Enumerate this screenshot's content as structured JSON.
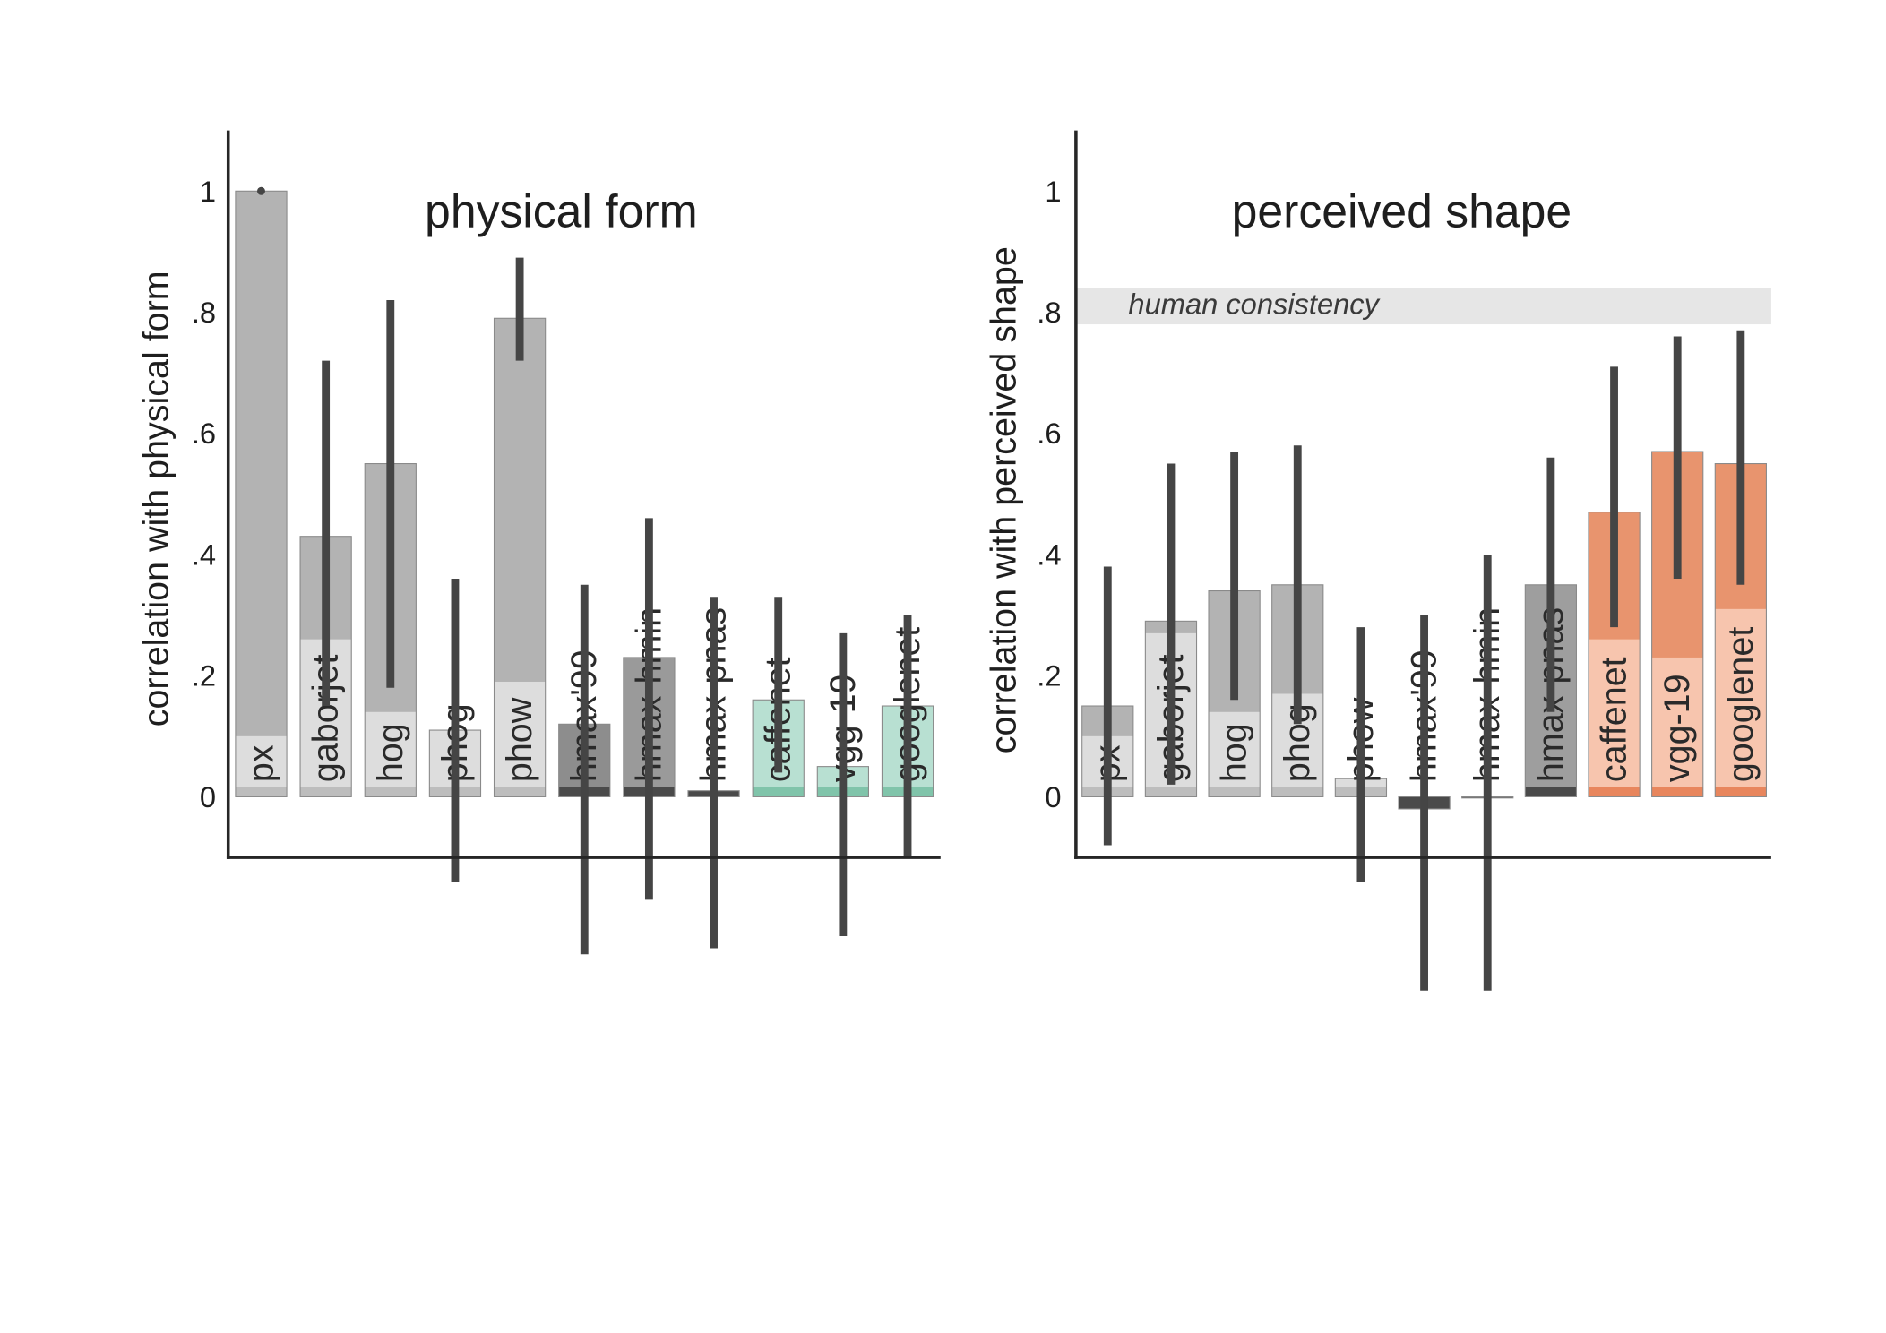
{
  "chart_data": [
    {
      "type": "bar",
      "title": "physical form",
      "ylabel": "correlation with physical form",
      "ylim": [
        -0.1,
        1.1
      ],
      "yticks": [
        0,
        0.2,
        0.4,
        0.6,
        0.8,
        1
      ],
      "ytick_labels": [
        "0",
        ".2",
        ".4",
        ".6",
        ".8",
        "1"
      ],
      "grid": false,
      "categories": [
        "px",
        "gaborjet",
        "hog",
        "phog",
        "phow",
        "hmax'99",
        "hmax-hmin",
        "hmax-pnas",
        "caffenet",
        "vgg-19",
        "googlenet"
      ],
      "values": [
        1.0,
        0.43,
        0.55,
        0.11,
        0.79,
        0.12,
        0.23,
        0.01,
        0.16,
        0.05,
        0.15
      ],
      "inner_values": [
        0.1,
        0.26,
        0.14,
        0.11,
        0.19,
        0,
        0,
        0,
        0.16,
        0.05,
        0.15
      ],
      "base_value": 0.016,
      "error_low": [
        1.0,
        0.15,
        0.18,
        -0.14,
        0.72,
        -0.26,
        -0.17,
        -0.25,
        0.04,
        -0.23,
        -0.1
      ],
      "error_high": [
        1.0,
        0.72,
        0.82,
        0.36,
        0.89,
        0.35,
        0.46,
        0.33,
        0.33,
        0.27,
        0.3
      ],
      "bar_colors": [
        "#b3b3b3",
        "#b3b3b3",
        "#b3b3b3",
        "#b3b3b3",
        "#b3b3b3",
        "#8d8d8d",
        "#9a9a9a",
        "#4a4a4a",
        "#b8e0d2",
        "#b8e0d2",
        "#b8e0d2"
      ],
      "inner_colors": [
        "#dddddd",
        "#dddddd",
        "#dddddd",
        "#dddddd",
        "#dddddd",
        "#8d8d8d",
        "#9a9a9a",
        "#4a4a4a",
        "#b8e0d2",
        "#b8e0d2",
        "#b8e0d2"
      ],
      "base_colors": [
        "#bdbdbd",
        "#bdbdbd",
        "#bdbdbd",
        "#bdbdbd",
        "#bdbdbd",
        "#4a4a4a",
        "#4a4a4a",
        "#4a4a4a",
        "#80c4aa",
        "#80c4aa",
        "#80c4aa"
      ],
      "error_color": "#454545"
    },
    {
      "type": "bar",
      "title": "perceived shape",
      "ylabel": "correlation with perceived shape",
      "ylim": [
        -0.1,
        1.1
      ],
      "yticks": [
        0,
        0.2,
        0.4,
        0.6,
        0.8,
        1
      ],
      "ytick_labels": [
        "0",
        ".2",
        ".4",
        ".6",
        ".8",
        "1"
      ],
      "grid": false,
      "categories": [
        "px",
        "gaborjet",
        "hog",
        "phog",
        "phow",
        "hmax'99",
        "hmax-hmin",
        "hmax-pnas",
        "caffenet",
        "vgg-19",
        "googlenet"
      ],
      "values": [
        0.15,
        0.29,
        0.34,
        0.35,
        0.03,
        -0.02,
        0.0,
        0.35,
        0.47,
        0.57,
        0.55
      ],
      "inner_values": [
        0.1,
        0.27,
        0.14,
        0.17,
        0.03,
        0,
        0,
        0,
        0.26,
        0.23,
        0.31
      ],
      "base_value": 0.016,
      "error_low": [
        -0.08,
        0.02,
        0.16,
        0.12,
        -0.14,
        -0.32,
        -0.32,
        0.14,
        0.28,
        0.36,
        0.35
      ],
      "error_high": [
        0.38,
        0.55,
        0.57,
        0.58,
        0.28,
        0.3,
        0.4,
        0.56,
        0.71,
        0.76,
        0.77
      ],
      "bar_colors": [
        "#b3b3b3",
        "#b3b3b3",
        "#b3b3b3",
        "#b3b3b3",
        "#b3b3b3",
        "#4a4a4a",
        "#4a4a4a",
        "#9e9e9e",
        "#e8946e",
        "#e8946e",
        "#e8946e"
      ],
      "inner_colors": [
        "#dddddd",
        "#dddddd",
        "#dddddd",
        "#dddddd",
        "#dddddd",
        "#4a4a4a",
        "#4a4a4a",
        "#9e9e9e",
        "#f7c5ae",
        "#f7c5ae",
        "#f7c5ae"
      ],
      "base_colors": [
        "#bdbdbd",
        "#bdbdbd",
        "#bdbdbd",
        "#bdbdbd",
        "#bdbdbd",
        "#4a4a4a",
        "#4a4a4a",
        "#4a4a4a",
        "#e8865d",
        "#e8865d",
        "#e8865d"
      ],
      "error_color": "#454545",
      "reference_band": {
        "label": "human consistency",
        "range": [
          0.78,
          0.84
        ],
        "color": "#e6e6e6"
      }
    }
  ]
}
